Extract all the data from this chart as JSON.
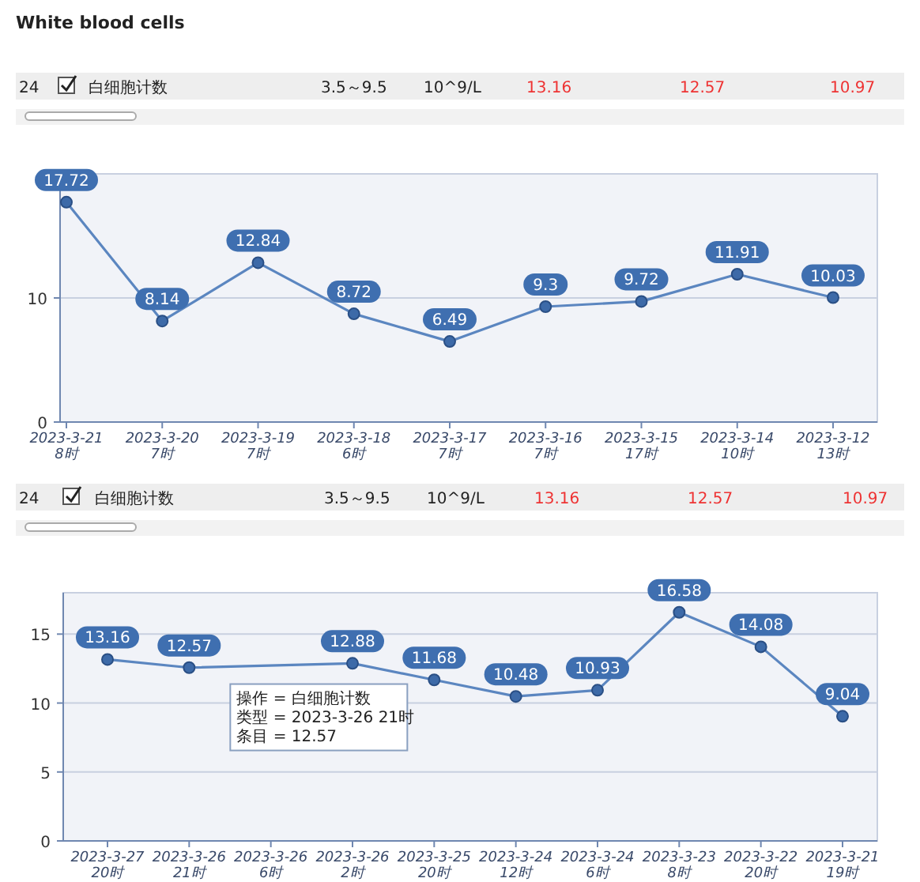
{
  "chart_data": [
    {
      "type": "line",
      "title": "White blood cells",
      "categories": [
        "2023-3-21 8时",
        "2023-3-20 7时",
        "2023-3-19 7时",
        "2023-3-18 6时",
        "2023-3-17 7时",
        "2023-3-16 7时",
        "2023-3-15 17时",
        "2023-3-14 10时",
        "2023-3-12 13时"
      ],
      "series": [
        {
          "color": "#5b86c0",
          "values": [
            17.72,
            8.14,
            12.84,
            8.72,
            6.49,
            9.3,
            9.72,
            11.91,
            10.03
          ]
        }
      ],
      "ylim": [
        0,
        20
      ],
      "yticks": [
        0,
        10
      ],
      "grid": "y",
      "marker": "circle",
      "data_labels": true,
      "annotations": [
        "24",
        "白细胞计数",
        "3.5～9.5",
        "10^9/L",
        "13.16",
        "12.57",
        "10.97"
      ]
    },
    {
      "type": "line",
      "categories": [
        "2023-3-27 20时",
        "2023-3-26 21时",
        "2023-3-26 6时",
        "2023-3-26 2时",
        "2023-3-25 20时",
        "2023-3-24 12时",
        "2023-3-24 6时",
        "2023-3-23 8时",
        "2023-3-22 20时",
        "2023-3-21 19时"
      ],
      "series": [
        {
          "color": "#5b86c0",
          "values": [
            13.16,
            12.57,
            null,
            12.88,
            11.68,
            10.48,
            10.93,
            16.58,
            14.08,
            9.04
          ]
        }
      ],
      "ylim": [
        0,
        18
      ],
      "yticks": [
        0,
        5,
        10,
        15
      ],
      "grid": "y",
      "marker": "circle",
      "data_labels": true,
      "annotations": [
        "24",
        "白细胞计数",
        "3.5～9.5",
        "10^9/L",
        "13.16",
        "12.57",
        "10.97",
        "操作 = 白细胞计数",
        "类型 = 2023-3-26 21时",
        "条目 = 12.57"
      ]
    }
  ]
}
